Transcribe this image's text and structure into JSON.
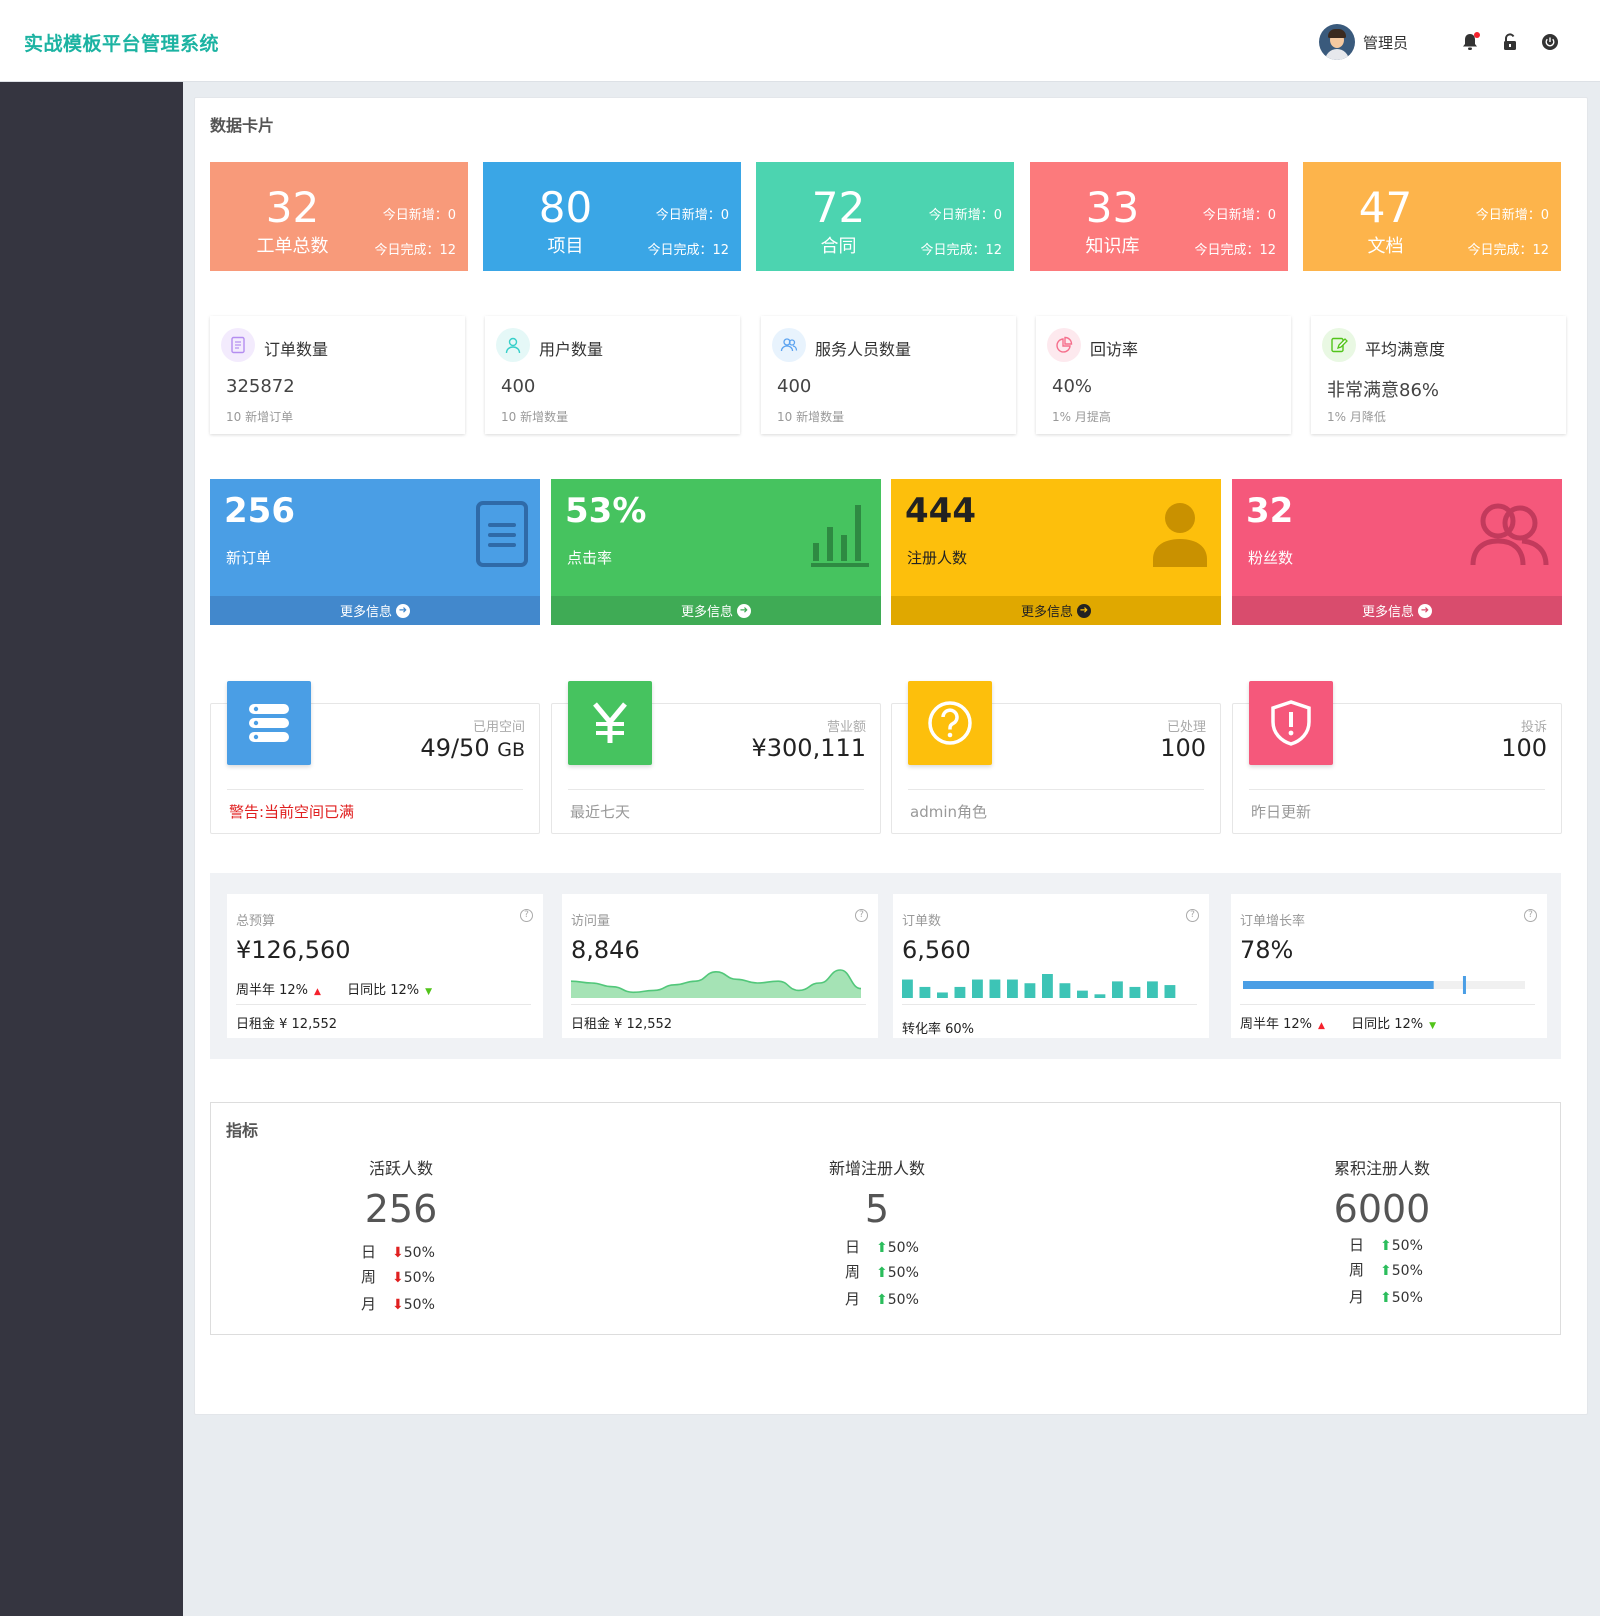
{
  "header": {
    "title": "实战模板平台管理系统",
    "user": "管理员"
  },
  "panel": {
    "title": "数据卡片"
  },
  "stat_cards": [
    {
      "num": "32",
      "label": "工单总数",
      "t1": "今日新增：0",
      "t2": "今日完成：12",
      "color": "#f89a7a"
    },
    {
      "num": "80",
      "label": "项目",
      "t1": "今日新增：0",
      "t2": "今日完成：12",
      "color": "#3aa6e6"
    },
    {
      "num": "72",
      "label": "合同",
      "t1": "今日新增：0",
      "t2": "今日完成：12",
      "color": "#4cd4b0"
    },
    {
      "num": "33",
      "label": "知识库",
      "t1": "今日新增：0",
      "t2": "今日完成：12",
      "color": "#fc7a7c"
    },
    {
      "num": "47",
      "label": "文档",
      "t1": "今日新增：0",
      "t2": "今日完成：12",
      "color": "#fdb44b"
    }
  ],
  "summary_cards": [
    {
      "title": "订单数量",
      "value": "325872",
      "sub": "10 新增订单",
      "icon": "document-icon",
      "icon_color": "#b48df0",
      "icon_bg": "#f3ebfd"
    },
    {
      "title": "用户数量",
      "value": "400",
      "sub": "10 新增数量",
      "icon": "user-icon",
      "icon_color": "#36cfc9",
      "icon_bg": "#e5f8f7"
    },
    {
      "title": "服务人员数量",
      "value": "400",
      "sub": "10 新增数量",
      "icon": "team-icon",
      "icon_color": "#5ba3f0",
      "icon_bg": "#e8f3fd"
    },
    {
      "title": "回访率",
      "value": "40%",
      "sub": "1% 月提高",
      "icon": "pie-icon",
      "icon_color": "#f56f8c",
      "icon_bg": "#fde9ee"
    },
    {
      "title": "平均满意度",
      "value": "非常满意86%",
      "sub": "1% 月降低",
      "icon": "edit-icon",
      "icon_color": "#52c41a",
      "icon_bg": "#e9f8e3"
    }
  ],
  "big_boxes": [
    {
      "num": "256",
      "label": "新订单",
      "more": "更多信息",
      "icon": "document-icon",
      "color": "#4a9ee5",
      "foot": "#4288cc"
    },
    {
      "num": "53%",
      "label": "点击率",
      "more": "更多信息",
      "icon": "bar-chart-icon",
      "color": "#46c35f",
      "foot": "#3fab55"
    },
    {
      "num": "444",
      "label": "注册人数",
      "more": "更多信息",
      "icon": "person-icon",
      "color": "#fdbf0c",
      "foot": "#e0a800"
    },
    {
      "num": "32",
      "label": "粉丝数",
      "more": "更多信息",
      "icon": "users-icon",
      "color": "#f5587b",
      "foot": "#d94c6d"
    }
  ],
  "info_boxes": [
    {
      "caption": "已用空间",
      "amount": "49/50",
      "unit": "GB",
      "note": "警告:当前空间已满",
      "icon": "database-icon",
      "color": "#4a9ee5",
      "note_color": "#e02020"
    },
    {
      "caption": "营业额",
      "amount": "¥300,111",
      "unit": "",
      "note": "最近七天",
      "icon": "yen-icon",
      "color": "#46c35f",
      "note_color": "#999999"
    },
    {
      "caption": "已处理",
      "amount": "100",
      "unit": "",
      "note": "admin角色",
      "icon": "question-icon",
      "color": "#fdbf0c",
      "note_color": "#999999"
    },
    {
      "caption": "投诉",
      "amount": "100",
      "unit": "",
      "note": "昨日更新",
      "icon": "shield-icon",
      "color": "#f5587b",
      "note_color": "#999999"
    }
  ],
  "mini_cards": [
    {
      "caption": "总预算",
      "value": "¥126,560",
      "week": "周半年 12%",
      "day": "日同比 12%",
      "footer": "日租金 ¥ 12,552"
    },
    {
      "caption": "访问量",
      "value": "8,846",
      "footer": "日租金 ¥ 12,552"
    },
    {
      "caption": "订单数",
      "value": "6,560",
      "footer": "转化率  60%"
    },
    {
      "caption": "订单增长率",
      "value": "78%",
      "week": "周半年 12%",
      "day": "日同比 12%"
    }
  ],
  "visit_trend": [
    8,
    7,
    5,
    2,
    3,
    6,
    8,
    13,
    9,
    7,
    8,
    3,
    7,
    14,
    4
  ],
  "order_bars": [
    10,
    6,
    3,
    6,
    10,
    10,
    10,
    8,
    13,
    8,
    4,
    2,
    9,
    6,
    9,
    7
  ],
  "order_growth": 0.78,
  "indicators": {
    "title": "指标",
    "columns": [
      {
        "heading": "活跃人数",
        "number": "256",
        "dir": "down",
        "rows": [
          {
            "k": "日",
            "v": "50%"
          },
          {
            "k": "周",
            "v": "50%"
          },
          {
            "k": "月",
            "v": "50%"
          }
        ]
      },
      {
        "heading": "新增注册人数",
        "number": "5",
        "dir": "up",
        "rows": [
          {
            "k": "日",
            "v": "50%"
          },
          {
            "k": "周",
            "v": "50%"
          },
          {
            "k": "月",
            "v": "50%"
          }
        ]
      },
      {
        "heading": "累积注册人数",
        "number": "6000",
        "dir": "up",
        "rows": [
          {
            "k": "日",
            "v": "50%"
          },
          {
            "k": "周",
            "v": "50%"
          },
          {
            "k": "月",
            "v": "50%"
          }
        ]
      }
    ]
  }
}
